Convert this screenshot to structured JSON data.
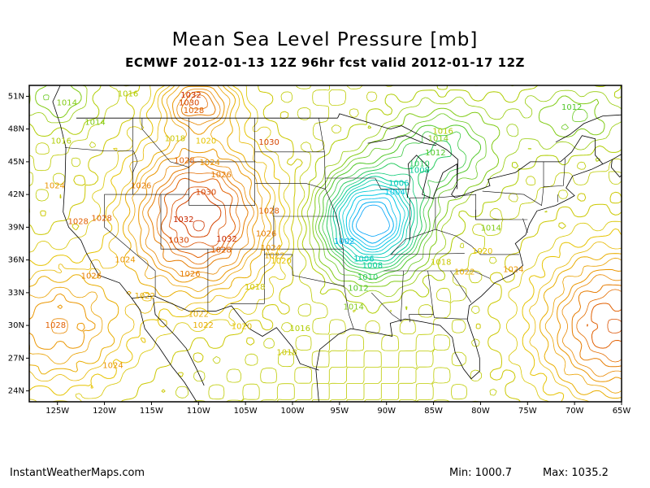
{
  "title": "Mean Sea Level Pressure [mb]",
  "subtitle": "ECMWF 2012-01-13 12Z 96hr fcst valid 2012-01-17 12Z",
  "footer": {
    "site": "InstantWeatherMaps.com",
    "min_label": "Min: 1000.7",
    "max_label": "Max: 1035.2"
  },
  "map": {
    "lon_range": [
      -128,
      -65
    ],
    "lat_range": [
      23,
      52
    ],
    "lat_ticks": [
      "51N",
      "48N",
      "45N",
      "42N",
      "39N",
      "36N",
      "33N",
      "30N",
      "27N",
      "24N"
    ],
    "lon_ticks": [
      "125W",
      "120W",
      "115W",
      "110W",
      "105W",
      "100W",
      "95W",
      "90W",
      "85W",
      "80W",
      "75W",
      "70W",
      "65W"
    ],
    "low_center": {
      "lon": -91.5,
      "lat": 39.5,
      "pressure_mb": 1000.7
    },
    "isobar_labels": [
      {
        "text": "1014",
        "lon": -124.0,
        "lat": 50.4
      },
      {
        "text": "1016",
        "lon": -117.5,
        "lat": 51.2
      },
      {
        "text": "1032",
        "lon": -110.8,
        "lat": 51.1
      },
      {
        "text": "1030",
        "lon": -111.0,
        "lat": 50.4
      },
      {
        "text": "1028",
        "lon": -110.5,
        "lat": 49.7
      },
      {
        "text": "1014",
        "lon": -121.0,
        "lat": 48.6
      },
      {
        "text": "1016",
        "lon": -124.6,
        "lat": 46.9
      },
      {
        "text": "1018",
        "lon": -112.5,
        "lat": 47.1
      },
      {
        "text": "1020",
        "lon": -109.2,
        "lat": 46.9
      },
      {
        "text": "1030",
        "lon": -102.5,
        "lat": 46.8
      },
      {
        "text": "1028",
        "lon": -111.5,
        "lat": 45.1
      },
      {
        "text": "1024",
        "lon": -108.8,
        "lat": 44.9
      },
      {
        "text": "1026",
        "lon": -107.6,
        "lat": 43.8
      },
      {
        "text": "1030",
        "lon": -109.2,
        "lat": 42.2
      },
      {
        "text": "1024",
        "lon": -125.3,
        "lat": 42.8
      },
      {
        "text": "1026",
        "lon": -116.1,
        "lat": 42.8
      },
      {
        "text": "1028",
        "lon": -122.8,
        "lat": 39.5
      },
      {
        "text": "1028",
        "lon": -120.3,
        "lat": 39.8
      },
      {
        "text": "1032",
        "lon": -111.6,
        "lat": 39.7
      },
      {
        "text": "1028",
        "lon": -102.5,
        "lat": 40.5
      },
      {
        "text": "1026",
        "lon": -102.8,
        "lat": 38.4
      },
      {
        "text": "1030",
        "lon": -112.1,
        "lat": 37.8
      },
      {
        "text": "1032",
        "lon": -107.0,
        "lat": 37.9
      },
      {
        "text": "1028",
        "lon": -107.6,
        "lat": 36.9
      },
      {
        "text": "1024",
        "lon": -102.3,
        "lat": 37.1
      },
      {
        "text": "1022",
        "lon": -101.9,
        "lat": 36.4
      },
      {
        "text": "1020",
        "lon": -101.2,
        "lat": 35.9
      },
      {
        "text": "1024",
        "lon": -117.8,
        "lat": 36.0
      },
      {
        "text": "1026",
        "lon": -110.9,
        "lat": 34.7
      },
      {
        "text": "1026",
        "lon": -121.4,
        "lat": 34.5
      },
      {
        "text": "1022",
        "lon": -115.7,
        "lat": 32.7
      },
      {
        "text": "1018",
        "lon": -104.0,
        "lat": 33.5
      },
      {
        "text": "1022",
        "lon": -110.0,
        "lat": 31.0
      },
      {
        "text": "1022",
        "lon": -109.5,
        "lat": 30.0
      },
      {
        "text": "1020",
        "lon": -105.4,
        "lat": 29.9
      },
      {
        "text": "1016",
        "lon": -99.2,
        "lat": 29.7
      },
      {
        "text": "1018",
        "lon": -100.6,
        "lat": 27.5
      },
      {
        "text": "1028",
        "lon": -125.2,
        "lat": 30.0
      },
      {
        "text": "1024",
        "lon": -119.1,
        "lat": 26.3
      },
      {
        "text": "1016",
        "lon": -84.0,
        "lat": 47.8
      },
      {
        "text": "1014",
        "lon": -84.5,
        "lat": 47.1
      },
      {
        "text": "1012",
        "lon": -84.8,
        "lat": 45.8
      },
      {
        "text": "1010",
        "lon": -86.5,
        "lat": 44.8
      },
      {
        "text": "1008",
        "lon": -86.5,
        "lat": 44.2
      },
      {
        "text": "1006",
        "lon": -88.7,
        "lat": 43.0
      },
      {
        "text": "1004",
        "lon": -89.1,
        "lat": 42.2
      },
      {
        "text": "1002",
        "lon": -94.5,
        "lat": 37.7
      },
      {
        "text": "1006",
        "lon": -92.4,
        "lat": 36.1
      },
      {
        "text": "1008",
        "lon": -91.5,
        "lat": 35.5
      },
      {
        "text": "1010",
        "lon": -92.0,
        "lat": 34.4
      },
      {
        "text": "1012",
        "lon": -93.0,
        "lat": 33.4
      },
      {
        "text": "1014",
        "lon": -93.5,
        "lat": 31.7
      },
      {
        "text": "1012",
        "lon": -70.3,
        "lat": 50.0
      },
      {
        "text": "1014",
        "lon": -78.9,
        "lat": 38.9
      },
      {
        "text": "1020",
        "lon": -79.8,
        "lat": 36.8
      },
      {
        "text": "1018",
        "lon": -84.2,
        "lat": 35.8
      },
      {
        "text": "1022",
        "lon": -81.7,
        "lat": 34.9
      },
      {
        "text": "1024",
        "lon": -76.5,
        "lat": 35.1
      }
    ]
  }
}
